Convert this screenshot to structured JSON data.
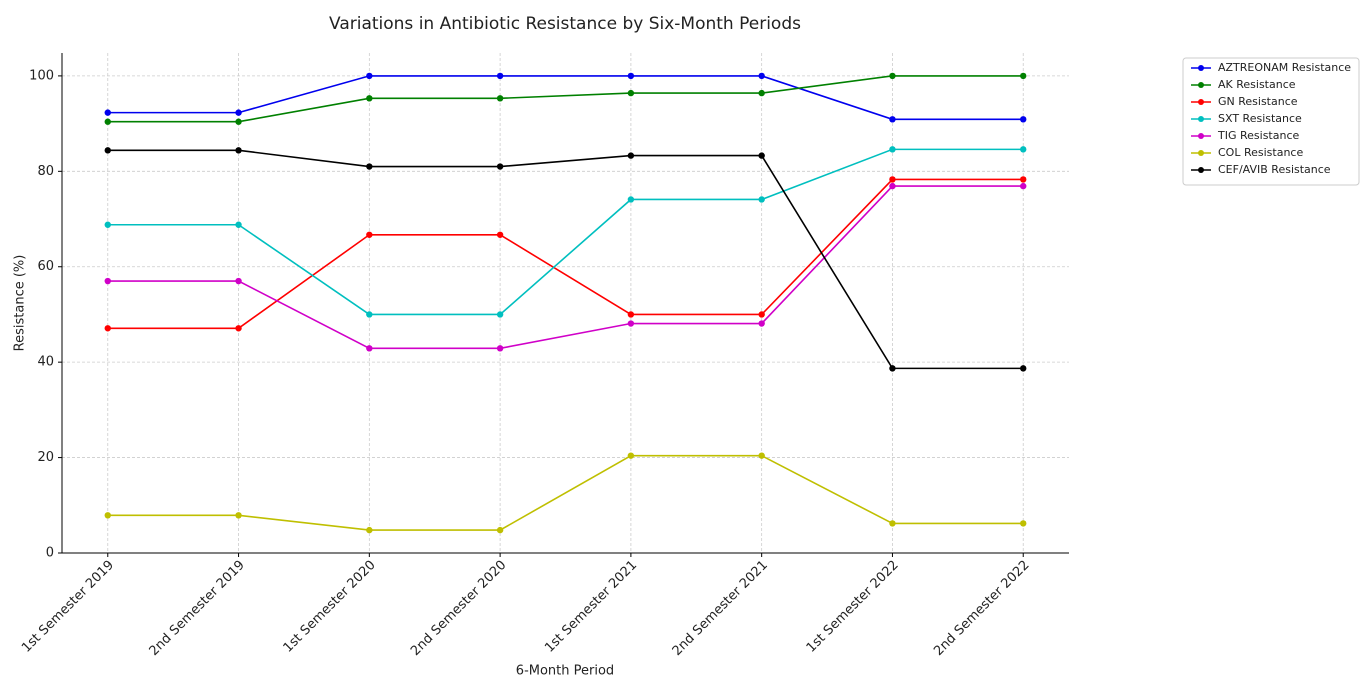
{
  "chart_data": {
    "type": "line",
    "title": "Variations in Antibiotic Resistance by Six-Month Periods",
    "xlabel": "6-Month Period",
    "ylabel": "Resistance (%)",
    "categories": [
      "1st Semester 2019",
      "2nd Semester 2019",
      "1st Semester 2020",
      "2nd Semester 2020",
      "1st Semester 2021",
      "2nd Semester 2021",
      "1st Semester 2022",
      "2nd Semester 2022"
    ],
    "series": [
      {
        "name": "AZTREONAM Resistance",
        "color": "#0000ee",
        "values": [
          92.3,
          92.3,
          100,
          100,
          100,
          100,
          90.9,
          90.9
        ]
      },
      {
        "name": "AK Resistance",
        "color": "#008000",
        "values": [
          90.4,
          90.4,
          95.3,
          95.3,
          96.4,
          96.4,
          100,
          100
        ]
      },
      {
        "name": "GN Resistance",
        "color": "#ff0000",
        "values": [
          47.1,
          47.1,
          66.7,
          66.7,
          50,
          50,
          78.3,
          78.3
        ]
      },
      {
        "name": "SXT Resistance",
        "color": "#00bfbf",
        "values": [
          68.8,
          68.8,
          50,
          50,
          74.1,
          74.1,
          84.6,
          84.6
        ]
      },
      {
        "name": "TIG Resistance",
        "color": "#d000c8",
        "values": [
          57,
          57,
          42.9,
          42.9,
          48.1,
          48.1,
          76.9,
          76.9
        ]
      },
      {
        "name": "COL Resistance",
        "color": "#bfbf00",
        "values": [
          7.9,
          7.9,
          4.8,
          4.8,
          20.4,
          20.4,
          6.2,
          6.2
        ]
      },
      {
        "name": "CEF/AVIB Resistance",
        "color": "#000000",
        "values": [
          84.4,
          84.4,
          81,
          81,
          83.3,
          83.3,
          38.7,
          38.7
        ]
      }
    ],
    "ylim": [
      0,
      104.8
    ],
    "yticks": [
      0,
      20,
      40,
      60,
      80,
      100
    ],
    "grid": true,
    "legend": "upper right"
  }
}
